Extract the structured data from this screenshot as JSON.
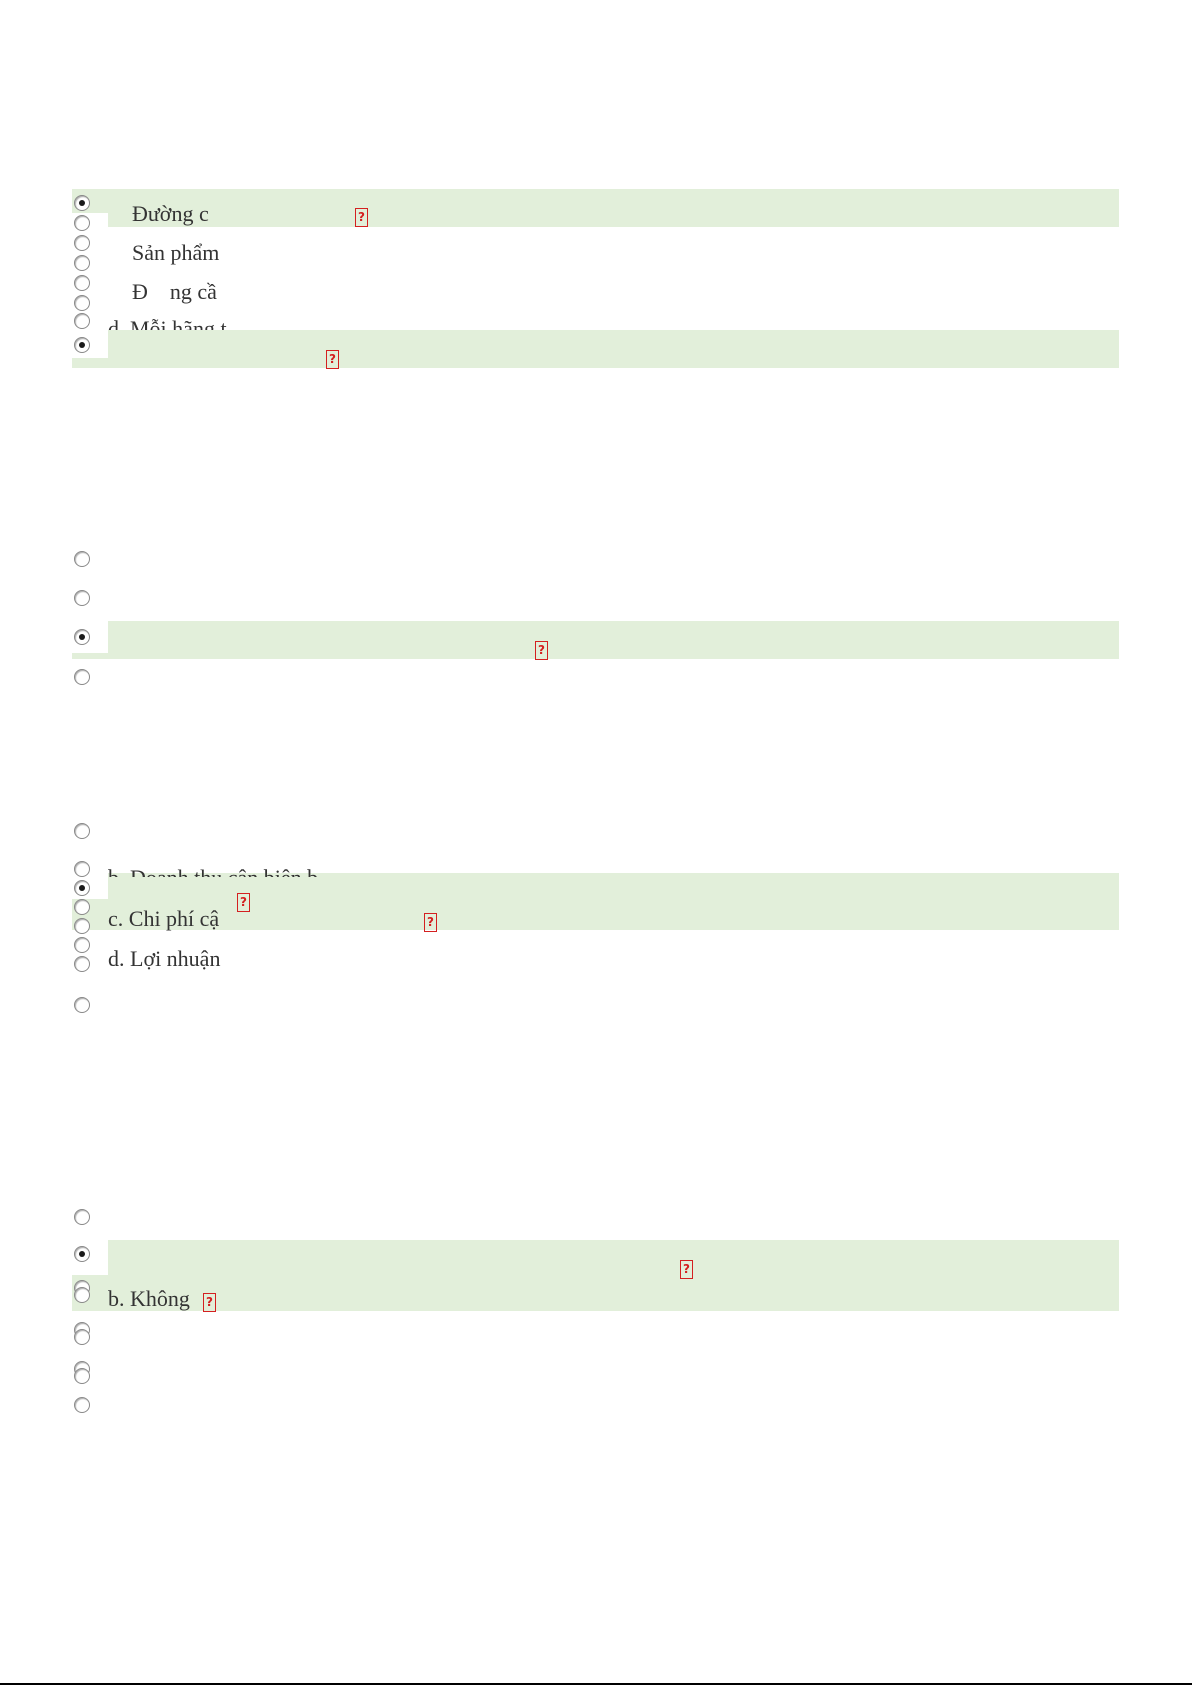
{
  "question_1": {
    "options": [
      {
        "text": "Đường c",
        "selected": true
      },
      {
        "text": "Sản phẩm",
        "selected": false
      },
      {
        "text": "Đ    ng cầ",
        "selected": false
      },
      {
        "text": "d. Mỗi hãng t",
        "selected": false
      },
      {
        "text": "",
        "selected": true
      }
    ]
  },
  "question_2": {
    "options": [
      {
        "selected": false
      },
      {
        "selected": false
      },
      {
        "selected": true
      },
      {
        "selected": false
      }
    ]
  },
  "question_3": {
    "options": [
      {
        "text": "",
        "selected": false
      },
      {
        "text": "b. Doanh thu cận biên b",
        "selected": false
      },
      {
        "text": "c. Chi phí cậ",
        "selected": true
      },
      {
        "text": "d. Lợi nhuận",
        "selected": false
      }
    ]
  },
  "question_4": {
    "options": [
      {
        "text": "",
        "selected": false
      },
      {
        "text": "",
        "selected": true
      },
      {
        "text": "b. Không",
        "selected": false
      }
    ]
  },
  "marker_glyph": "?",
  "colors": {
    "highlight": "#e2efda",
    "marker": "#d42020",
    "text": "#333333"
  }
}
